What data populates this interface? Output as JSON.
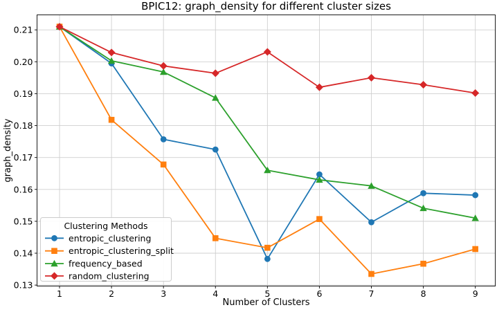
{
  "figure": {
    "background": "#ffffff"
  },
  "chart_data": {
    "type": "line",
    "title": "BPIC12: graph_density for different cluster sizes",
    "xlabel": "Number of Clusters",
    "ylabel": "graph_density",
    "x": [
      1,
      2,
      3,
      4,
      5,
      6,
      7,
      8,
      9
    ],
    "x_tick_labels": [
      "1",
      "2",
      "3",
      "4",
      "5",
      "6",
      "7",
      "8",
      "9"
    ],
    "y_ticks": [
      0.13,
      0.14,
      0.15,
      0.16,
      0.17,
      0.18,
      0.19,
      0.2,
      0.21
    ],
    "y_tick_labels": [
      "0.13",
      "0.14",
      "0.15",
      "0.16",
      "0.17",
      "0.18",
      "0.19",
      "0.20",
      "0.21"
    ],
    "xlim": [
      0.567,
      9.384
    ],
    "ylim": [
      0.1297,
      0.2147
    ],
    "grid": true,
    "grid_color": "#cfcfcf",
    "spine_color": "#1a1a1a",
    "legend": {
      "title": "Clustering Methods",
      "position": "lower-left",
      "border_color": "#cccccc",
      "background": "#ffffff"
    },
    "series": [
      {
        "name": "entropic_clustering",
        "color": "#1f77b4",
        "marker": "circle",
        "values": [
          0.211,
          0.1995,
          0.1757,
          0.1725,
          0.1382,
          0.1647,
          0.1497,
          0.1588,
          0.1582
        ]
      },
      {
        "name": "entropic_clustering_split",
        "color": "#ff7f0e",
        "marker": "square",
        "values": [
          0.211,
          0.1818,
          0.1678,
          0.1447,
          0.1417,
          0.1507,
          0.1335,
          0.1367,
          0.1413
        ]
      },
      {
        "name": "frequency_based",
        "color": "#2ca02c",
        "marker": "triangle",
        "values": [
          0.211,
          0.2003,
          0.1968,
          0.1887,
          0.166,
          0.163,
          0.1611,
          0.1541,
          0.151
        ]
      },
      {
        "name": "random_clustering",
        "color": "#d62728",
        "marker": "diamond",
        "values": [
          0.211,
          0.2029,
          0.1987,
          0.1964,
          0.2031,
          0.192,
          0.195,
          0.1928,
          0.1902
        ]
      }
    ]
  }
}
